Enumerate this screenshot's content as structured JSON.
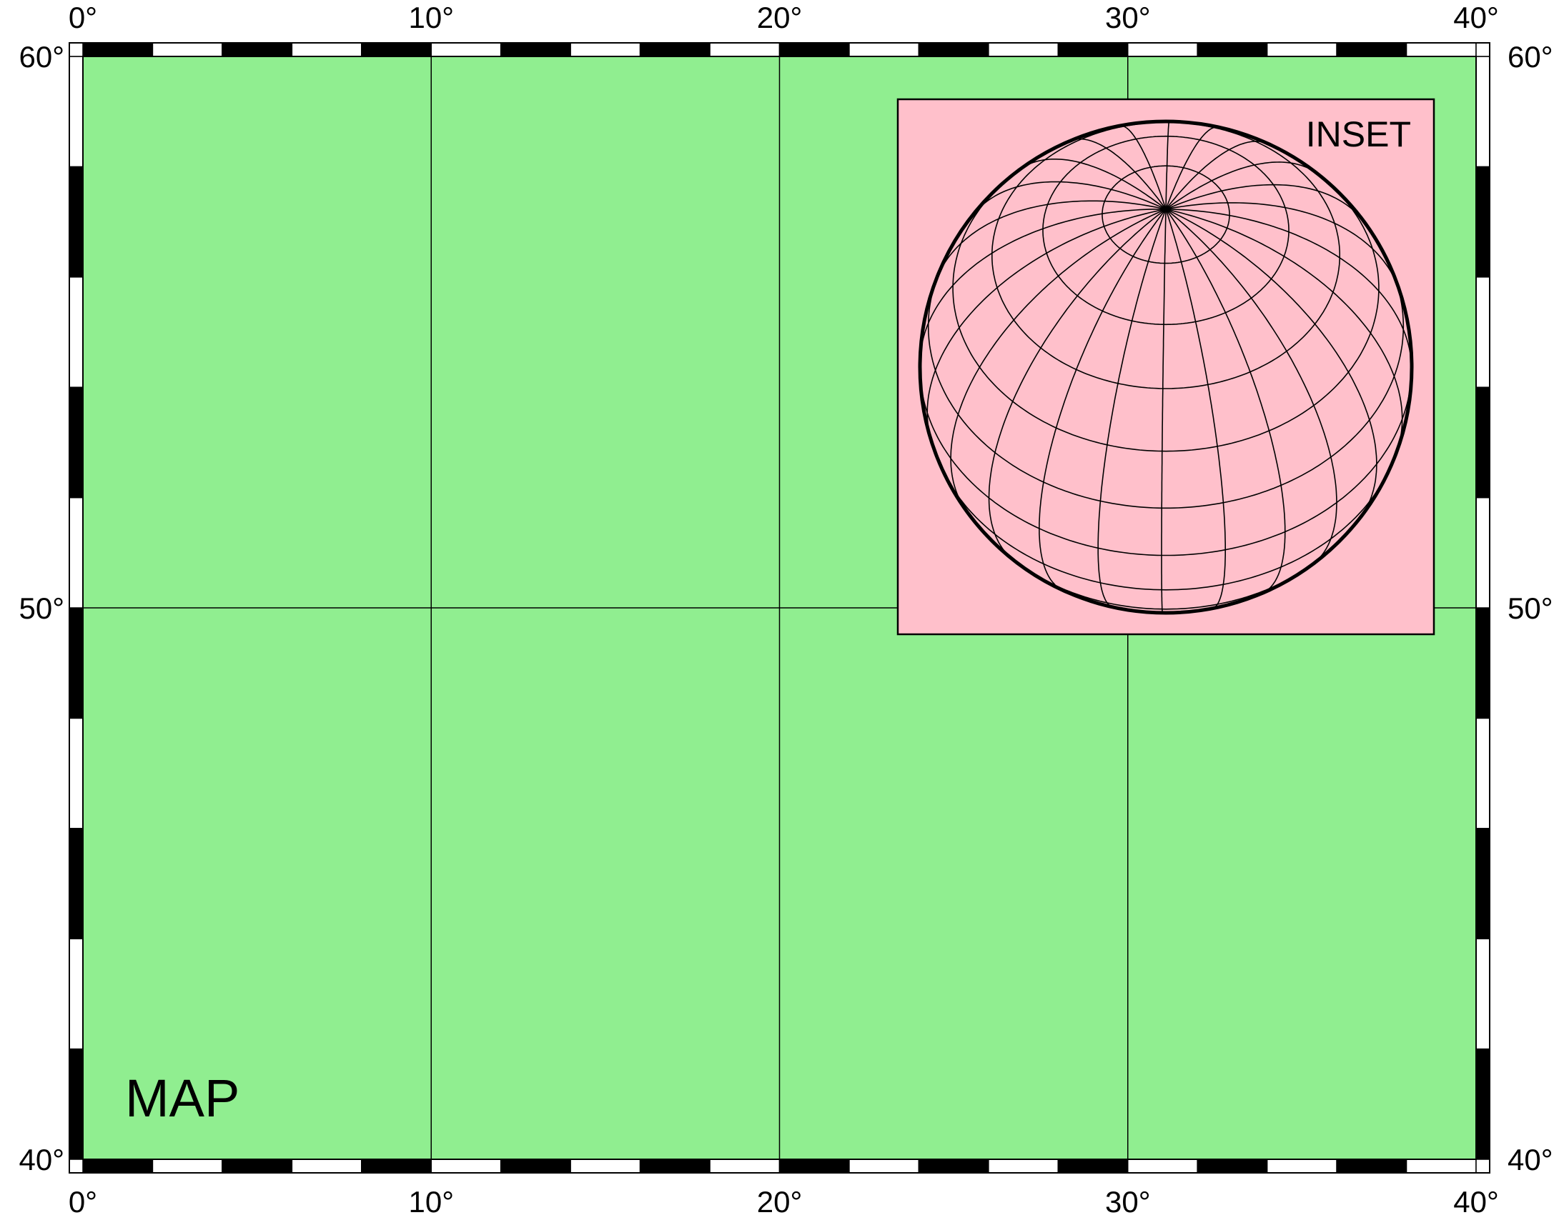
{
  "map": {
    "title": "MAP",
    "land_color": "#90EE90",
    "frame_colors": [
      "#000000",
      "#ffffff"
    ],
    "lon_range": [
      0,
      40
    ],
    "lat_range": [
      40,
      60
    ],
    "frame_tick_interval": 2,
    "gridline_lons": [
      10,
      20,
      30
    ],
    "gridline_lats": [
      50
    ],
    "x_tick_labels": [
      {
        "value": 0,
        "label": "0°"
      },
      {
        "value": 10,
        "label": "10°"
      },
      {
        "value": 20,
        "label": "20°"
      },
      {
        "value": 30,
        "label": "30°"
      },
      {
        "value": 40,
        "label": "40°"
      }
    ],
    "y_tick_labels": [
      {
        "value": 40,
        "label": "40°"
      },
      {
        "value": 50,
        "label": "50°"
      },
      {
        "value": 60,
        "label": "60°"
      }
    ]
  },
  "inset": {
    "title": "INSET",
    "background_color": "#FFC0CB",
    "projection": "orthographic",
    "center_lon": 31,
    "center_lat": 50,
    "graticule_lon_interval": 15,
    "graticule_lat_interval": 15
  }
}
